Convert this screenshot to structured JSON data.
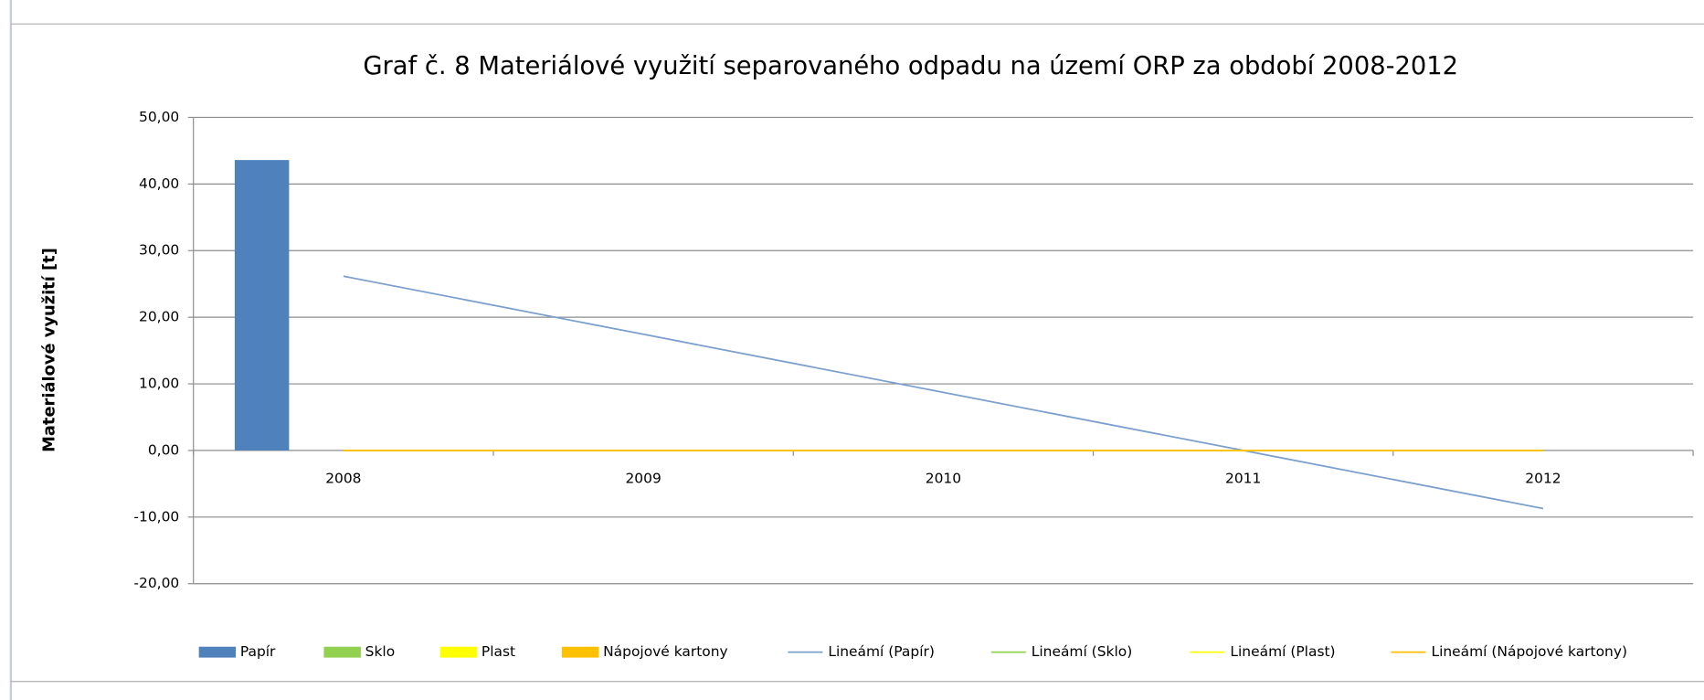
{
  "chart_data": {
    "type": "bar",
    "title": "Graf č. 8 Materiálové využití separovaného odpadu na území ORP za období 2008-2012",
    "y_label": "Materiálové využití [t]",
    "categories": [
      "2008",
      "2009",
      "2010",
      "2011",
      "2012"
    ],
    "series": [
      {
        "name": "Papír",
        "type": "bar",
        "color": "#4f81bd",
        "values": [
          43.6,
          0,
          0,
          0,
          0
        ]
      },
      {
        "name": "Sklo",
        "type": "bar",
        "color": "#92d050",
        "values": [
          0,
          0,
          0,
          0,
          0
        ]
      },
      {
        "name": "Plast",
        "type": "bar",
        "color": "#ffff00",
        "values": [
          0,
          0,
          0,
          0,
          0
        ]
      },
      {
        "name": "Nápojové kartony",
        "type": "bar",
        "color": "#ffc000",
        "values": [
          0,
          0,
          0,
          0,
          0
        ]
      },
      {
        "name": "Lineámí (Papír)",
        "type": "line",
        "color": "#7ba0cd",
        "values": [
          26.16,
          17.44,
          8.72,
          0,
          -8.72
        ]
      },
      {
        "name": "Lineámí (Sklo)",
        "type": "line",
        "color": "#92d050",
        "values": [
          0,
          0,
          0,
          0,
          0
        ]
      },
      {
        "name": "Lineámí (Plast)",
        "type": "line",
        "color": "#ffff00",
        "values": [
          0,
          0,
          0,
          0,
          0
        ]
      },
      {
        "name": "Lineámí (Nápojové kartony)",
        "type": "line",
        "color": "#ffc000",
        "values": [
          0,
          0,
          0,
          0,
          0
        ]
      }
    ],
    "ylim": [
      -20,
      50
    ],
    "yticks": [
      {
        "value": -20,
        "label": "-20,00"
      },
      {
        "value": -10,
        "label": "-10,00"
      },
      {
        "value": 0,
        "label": "0,00"
      },
      {
        "value": 10,
        "label": "10,00"
      },
      {
        "value": 20,
        "label": "20,00"
      },
      {
        "value": 30,
        "label": "30,00"
      },
      {
        "value": 40,
        "label": "40,00"
      },
      {
        "value": 50,
        "label": "50,00"
      }
    ],
    "grid": true,
    "legend": "bottom"
  }
}
